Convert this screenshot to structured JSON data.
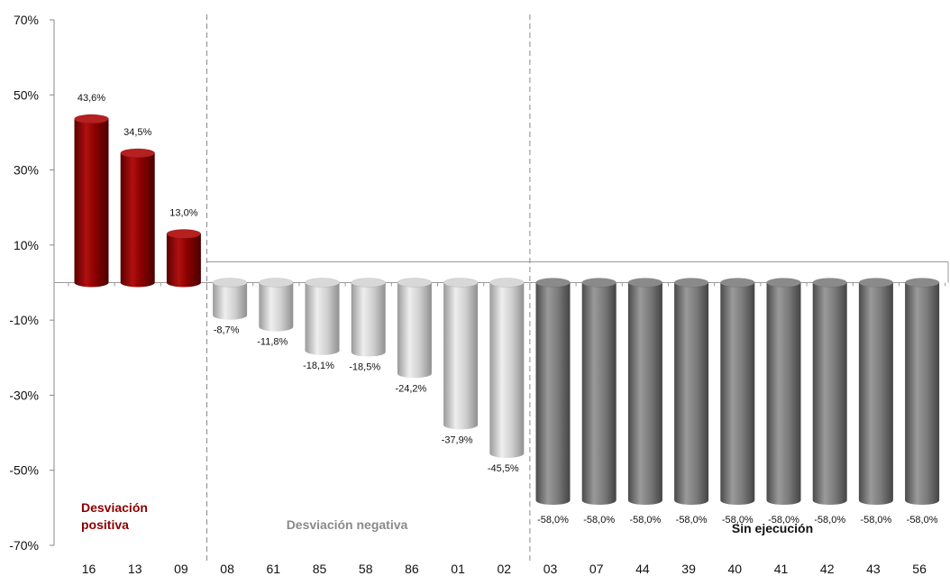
{
  "chart_data": {
    "type": "bar",
    "title": "",
    "xlabel": "",
    "ylabel": "",
    "ylim": [
      -70,
      70
    ],
    "yticks": [
      70,
      50,
      30,
      10,
      -10,
      -30,
      -50,
      -70
    ],
    "ytick_labels": [
      "70%",
      "50%",
      "30%",
      "10%",
      "-10%",
      "-30%",
      "-50%",
      "-70%"
    ],
    "categories": [
      "16",
      "13",
      "09",
      "08",
      "61",
      "85",
      "58",
      "86",
      "01",
      "02",
      "03",
      "07",
      "44",
      "39",
      "40",
      "41",
      "42",
      "43",
      "56"
    ],
    "values": [
      43.6,
      34.5,
      13.0,
      -8.7,
      -11.8,
      -18.1,
      -18.5,
      -24.2,
      -37.9,
      -45.5,
      -58.0,
      -58.0,
      -58.0,
      -58.0,
      -58.0,
      -58.0,
      -58.0,
      -58.0,
      -58.0
    ],
    "value_labels": [
      "43,6%",
      "34,5%",
      "13,0%",
      "-8,7%",
      "-11,8%",
      "-18,1%",
      "-18,5%",
      "-24,2%",
      "-37,9%",
      "-45,5%",
      "-58,0%",
      "-58,0%",
      "-58,0%",
      "-58,0%",
      "-58,0%",
      "-58,0%",
      "-58,0%",
      "-58,0%",
      "-58,0%"
    ],
    "groups": [
      {
        "label": "Desviación positiva",
        "label_lines": [
          "Desviación",
          "positiva"
        ],
        "start": 0,
        "end": 2,
        "color": "#8b0000",
        "label_color": "#8b0000"
      },
      {
        "label": "Desviación negativa",
        "label_lines": [
          "Desviación negativa"
        ],
        "start": 3,
        "end": 9,
        "color": "#c8c8c8",
        "label_color": "#8a8a8a"
      },
      {
        "label": "Sin ejecución",
        "label_lines": [
          "Sin ejecución"
        ],
        "start": 10,
        "end": 18,
        "color": "#7a7a7a",
        "label_color": "#111111"
      }
    ]
  }
}
